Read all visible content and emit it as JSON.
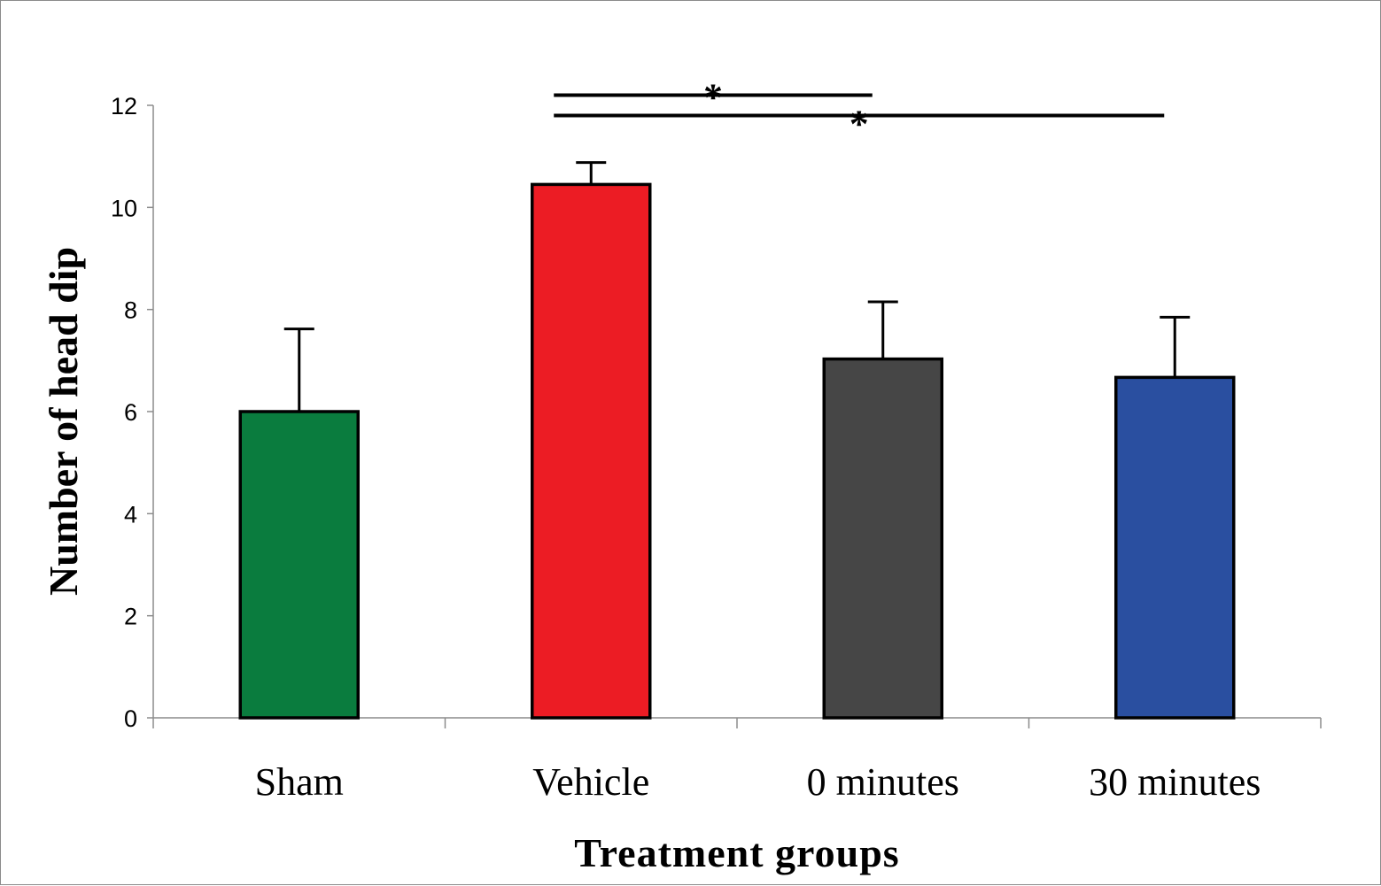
{
  "chart_data": {
    "type": "bar",
    "title": "",
    "xlabel": "Treatment groups",
    "ylabel": "Number of head dip",
    "categories": [
      "Sham",
      "Vehicle",
      "0 minutes",
      "30 minutes"
    ],
    "values": [
      6.0,
      10.45,
      7.03,
      6.67
    ],
    "error_upper": [
      1.62,
      0.43,
      1.12,
      1.18
    ],
    "colors": [
      "#0a7c3e",
      "#ec1c24",
      "#464646",
      "#2a4fa0"
    ],
    "ylim": [
      0,
      12
    ],
    "yticks": [
      0,
      2,
      4,
      6,
      8,
      10,
      12
    ],
    "grid": false,
    "significance": [
      {
        "from": "Vehicle",
        "to": "0 minutes",
        "label": "*"
      },
      {
        "from": "Vehicle",
        "to": "30 minutes",
        "label": "*"
      }
    ]
  }
}
